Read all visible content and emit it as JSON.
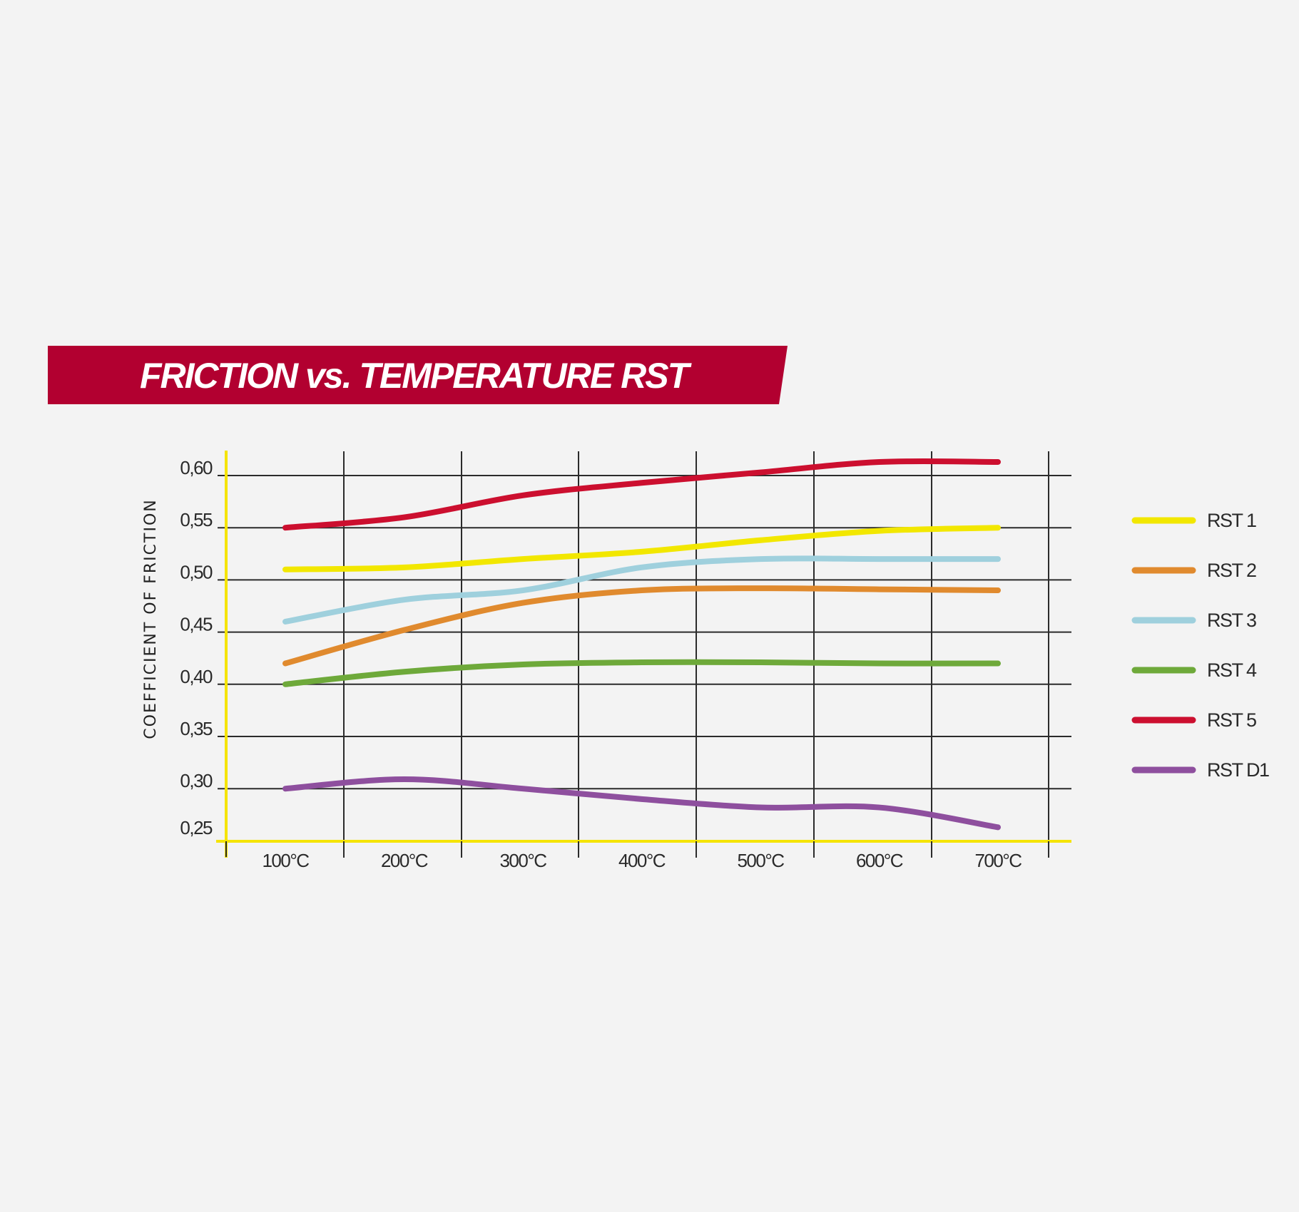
{
  "chart_data": {
    "type": "line",
    "title": "FRICTION vs. TEMPERATURE RST",
    "xlabel": "",
    "ylabel": "COEFFICIENT OF FRICTION",
    "categories": [
      "100°C",
      "200°C",
      "300°C",
      "400°C",
      "500°C",
      "600°C",
      "700°C"
    ],
    "y_ticks": [
      "0,60",
      "0,55",
      "0,50",
      "0,45",
      "0,40",
      "0,35",
      "0,30",
      "0,25"
    ],
    "y_tick_values": [
      0.6,
      0.55,
      0.5,
      0.45,
      0.4,
      0.35,
      0.3,
      0.25
    ],
    "ylim": [
      0.25,
      0.6
    ],
    "grid": true,
    "legend_position": "right",
    "axis_color": "#f5e400",
    "series": [
      {
        "name": "RST 1",
        "color": "#f2e700",
        "values": [
          0.51,
          0.512,
          0.52,
          0.527,
          0.538,
          0.547,
          0.55
        ]
      },
      {
        "name": "RST 2",
        "color": "#e08a2e",
        "values": [
          0.42,
          0.452,
          0.478,
          0.49,
          0.492,
          0.491,
          0.49
        ]
      },
      {
        "name": "RST 3",
        "color": "#9fd0dd",
        "values": [
          0.46,
          0.481,
          0.49,
          0.512,
          0.52,
          0.52,
          0.52
        ]
      },
      {
        "name": "RST 4",
        "color": "#6ea93a",
        "values": [
          0.4,
          0.412,
          0.419,
          0.421,
          0.421,
          0.42,
          0.42
        ]
      },
      {
        "name": "RST 5",
        "color": "#cc0f2f",
        "values": [
          0.55,
          0.56,
          0.581,
          0.593,
          0.603,
          0.613,
          0.613
        ]
      },
      {
        "name": "RST D1",
        "color": "#8e4f9e",
        "values": [
          0.3,
          0.309,
          0.3,
          0.29,
          0.282,
          0.282,
          0.263
        ]
      }
    ]
  },
  "banner_color": "#b20030"
}
